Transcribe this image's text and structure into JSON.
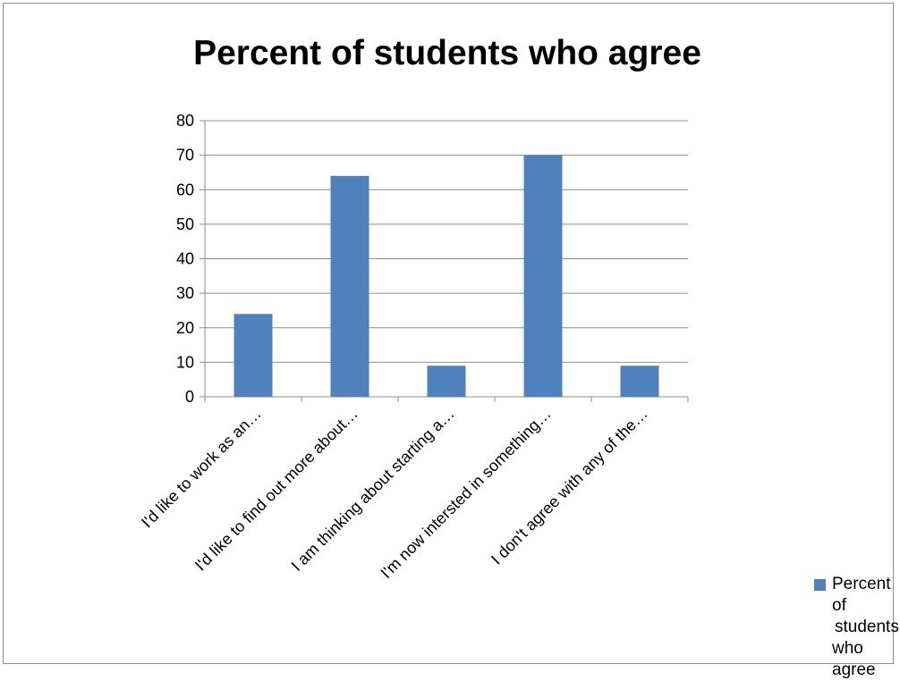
{
  "chart_data": {
    "type": "bar",
    "title": "Percent of students who agree",
    "categories": [
      "I'd like to work as an…",
      "I'd like to find out more about…",
      "I am thinking about starting a…",
      "I'm now intersted in something…",
      "I don't agree with any of the…"
    ],
    "series": [
      {
        "name": "Percent of students who agree",
        "values": [
          24,
          64,
          9,
          70,
          9
        ],
        "color": "#4f81bd"
      }
    ],
    "yticks": [
      "0",
      "10",
      "20",
      "30",
      "40",
      "50",
      "60",
      "70",
      "80"
    ],
    "ylim": [
      0,
      80
    ],
    "grid": true,
    "legend_position": "bottom-right"
  },
  "legend": {
    "line1": "Percent of",
    "line2": "students",
    "line3": "who agree"
  }
}
